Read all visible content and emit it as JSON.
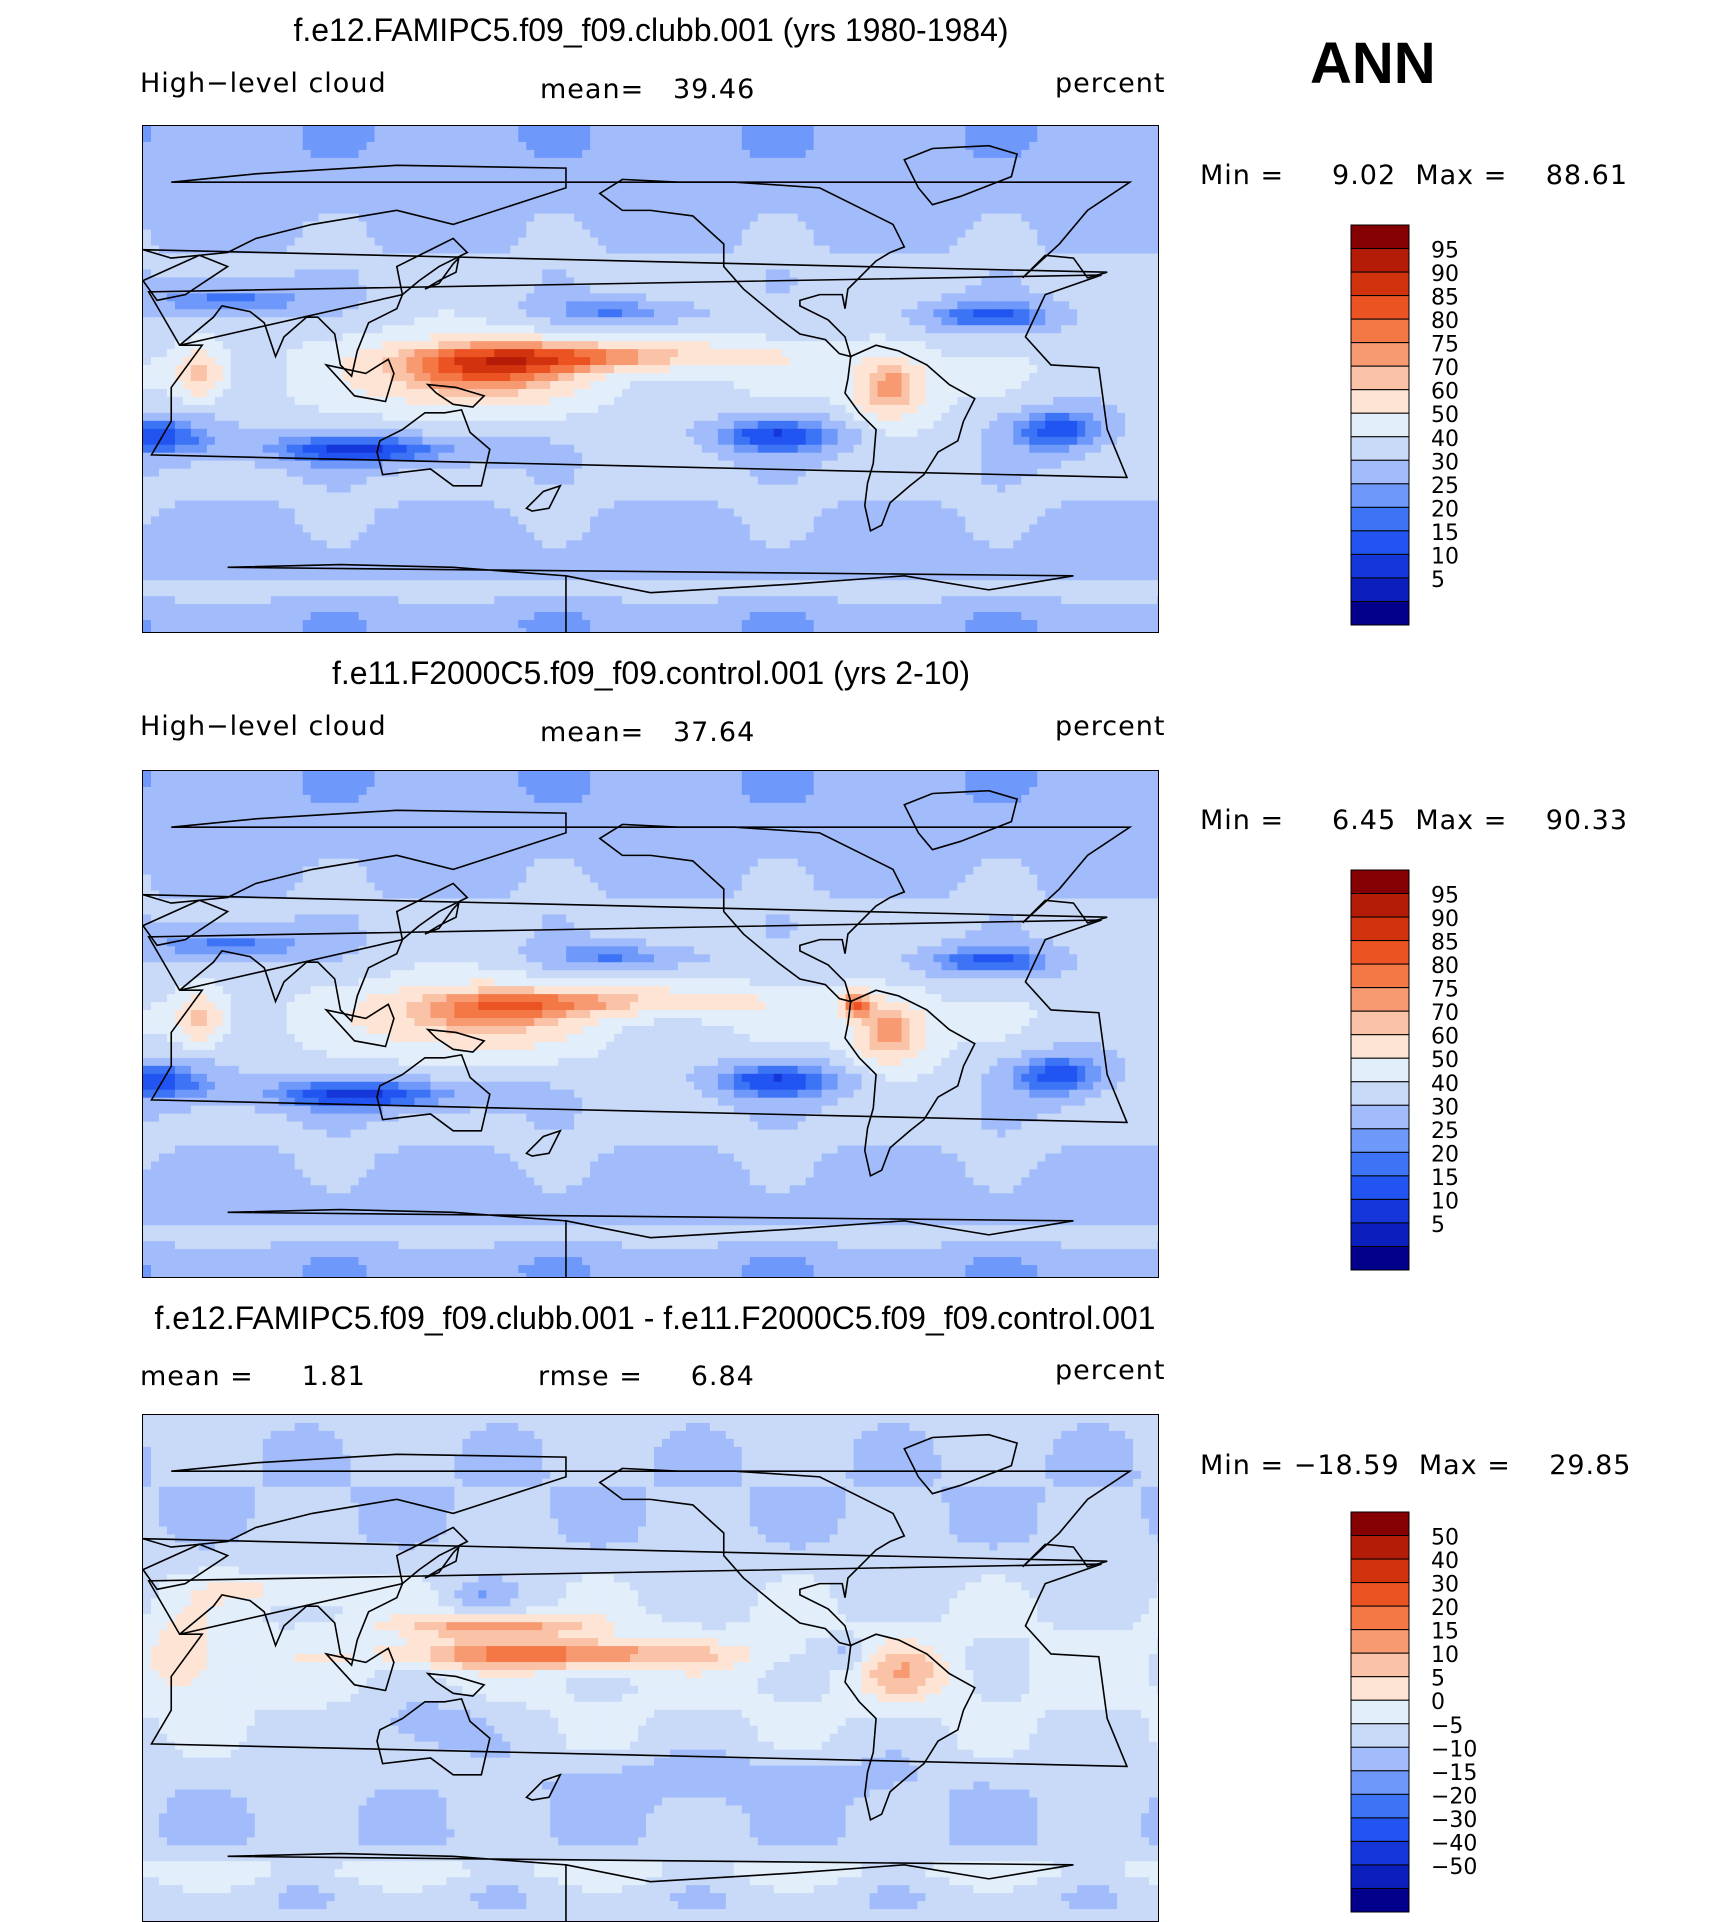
{
  "season": "ANN",
  "variable": "High-level cloud",
  "units": "percent",
  "panels": [
    {
      "title": "f.e12.FAMIPC5.f09_f09.clubb.001 (yrs 1980-1984)",
      "left_label": "High−level cloud",
      "stat_label": "mean=",
      "stat_value": "39.46",
      "units": "percent",
      "min_label": "Min =",
      "min_value": "9.02",
      "max_label": "Max =",
      "max_value": "88.61"
    },
    {
      "title": "f.e11.F2000C5.f09_f09.control.001 (yrs 2-10)",
      "left_label": "High−level cloud",
      "stat_label": "mean=",
      "stat_value": "37.64",
      "units": "percent",
      "min_label": "Min =",
      "min_value": "6.45",
      "max_label": "Max =",
      "max_value": "90.33"
    },
    {
      "title": "f.e12.FAMIPC5.f09_f09.clubb.001 - f.e11.F2000C5.f09_f09.control.001",
      "left_label": "mean =",
      "left_value": "1.81",
      "stat_label": "rmse =",
      "stat_value": "6.84",
      "units": "percent",
      "min_label": "Min =",
      "min_value": "−18.59",
      "max_label": "Max =",
      "max_value": "29.85"
    }
  ],
  "chart_data": [
    {
      "type": "heatmap",
      "title": "f.e12.FAMIPC5.f09_f09.clubb.001 (yrs 1980-1984)",
      "field": "High-level cloud",
      "units": "percent",
      "mean": 39.46,
      "min": 9.02,
      "max": 88.61,
      "contour_levels": [
        5,
        10,
        15,
        20,
        25,
        30,
        40,
        50,
        60,
        70,
        75,
        80,
        85,
        90,
        95
      ],
      "colorbar_labels": [
        "95",
        "90",
        "85",
        "80",
        "75",
        "70",
        "60",
        "50",
        "40",
        "30",
        "25",
        "20",
        "15",
        "10",
        "5"
      ],
      "colors": [
        "#03008c",
        "#0a1fbb",
        "#1536d8",
        "#2154f0",
        "#3c74f5",
        "#6f98fb",
        "#a2bcfb",
        "#c8daf8",
        "#e3eefb",
        "#fde4d4",
        "#fac2a6",
        "#f79a72",
        "#f47845",
        "#ec5323",
        "#d2330f",
        "#b41c08",
        "#850003"
      ]
    },
    {
      "type": "heatmap",
      "title": "f.e11.F2000C5.f09_f09.control.001 (yrs 2-10)",
      "field": "High-level cloud",
      "units": "percent",
      "mean": 37.64,
      "min": 6.45,
      "max": 90.33,
      "contour_levels": [
        5,
        10,
        15,
        20,
        25,
        30,
        40,
        50,
        60,
        70,
        75,
        80,
        85,
        90,
        95
      ],
      "colorbar_labels": [
        "95",
        "90",
        "85",
        "80",
        "75",
        "70",
        "60",
        "50",
        "40",
        "30",
        "25",
        "20",
        "15",
        "10",
        "5"
      ],
      "colors": [
        "#03008c",
        "#0a1fbb",
        "#1536d8",
        "#2154f0",
        "#3c74f5",
        "#6f98fb",
        "#a2bcfb",
        "#c8daf8",
        "#e3eefb",
        "#fde4d4",
        "#fac2a6",
        "#f79a72",
        "#f47845",
        "#ec5323",
        "#d2330f",
        "#b41c08",
        "#850003"
      ]
    },
    {
      "type": "heatmap",
      "title": "f.e12.FAMIPC5.f09_f09.clubb.001 - f.e11.F2000C5.f09_f09.control.001",
      "field": "High-level cloud difference",
      "units": "percent",
      "mean": 1.81,
      "rmse": 6.84,
      "min": -18.59,
      "max": 29.85,
      "contour_levels": [
        -50,
        -40,
        -30,
        -20,
        -15,
        -10,
        -5,
        0,
        5,
        10,
        15,
        20,
        30,
        40,
        50
      ],
      "colorbar_labels": [
        "50",
        "40",
        "30",
        "20",
        "15",
        "10",
        "5",
        "0",
        "−5",
        "−10",
        "−15",
        "−20",
        "−30",
        "−40",
        "−50"
      ],
      "colors": [
        "#03008c",
        "#0a1fbb",
        "#1536d8",
        "#2154f0",
        "#3c74f5",
        "#6f98fb",
        "#a2bcfb",
        "#c8daf8",
        "#e3eefb",
        "#fde4d4",
        "#fac2a6",
        "#f79a72",
        "#f47845",
        "#ec5323",
        "#d2330f",
        "#b41c08",
        "#850003"
      ]
    }
  ]
}
